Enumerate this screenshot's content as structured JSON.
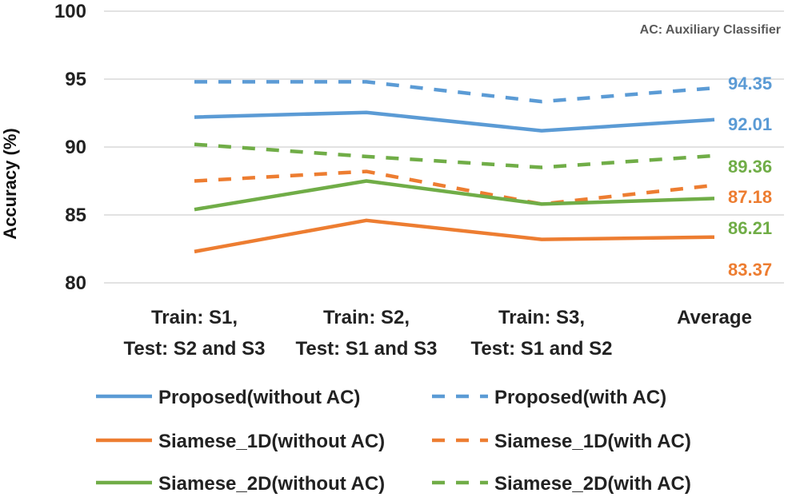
{
  "chart_data": {
    "type": "line",
    "title": "",
    "ylabel": "Accuracy (%)",
    "xlabel": "",
    "ylim": [
      80,
      100
    ],
    "yticks": [
      80,
      85,
      90,
      95,
      100
    ],
    "annotation": "AC: Auxiliary Classifier",
    "categories": [
      [
        "Train: S1,",
        "Test: S2 and S3"
      ],
      [
        "Train: S2,",
        "Test: S1 and S3"
      ],
      [
        "Train: S3,",
        "Test: S1 and S2"
      ],
      [
        "Average"
      ]
    ],
    "series": [
      {
        "name": "Proposed(without AC)",
        "color": "#5B9BD5",
        "dashed": false,
        "values": [
          92.2,
          92.55,
          91.2,
          92.01
        ],
        "end_label": "92.01"
      },
      {
        "name": "Proposed(with AC)",
        "color": "#5B9BD5",
        "dashed": true,
        "values": [
          94.8,
          94.8,
          93.35,
          94.35
        ],
        "end_label": "94.35"
      },
      {
        "name": "Siamese_1D(without AC)",
        "color": "#ED7D31",
        "dashed": false,
        "values": [
          82.3,
          84.6,
          83.2,
          83.37
        ],
        "end_label": "83.37"
      },
      {
        "name": "Siamese_1D(with AC)",
        "color": "#ED7D31",
        "dashed": true,
        "values": [
          87.5,
          88.2,
          85.8,
          87.18
        ],
        "end_label": "87.18"
      },
      {
        "name": "Siamese_2D(without AC)",
        "color": "#70AD47",
        "dashed": false,
        "values": [
          85.4,
          87.5,
          85.8,
          86.21
        ],
        "end_label": "86.21"
      },
      {
        "name": "Siamese_2D(with AC)",
        "color": "#70AD47",
        "dashed": true,
        "values": [
          90.2,
          89.3,
          88.5,
          89.36
        ],
        "end_label": "89.36"
      }
    ],
    "legend_position": "bottom"
  }
}
